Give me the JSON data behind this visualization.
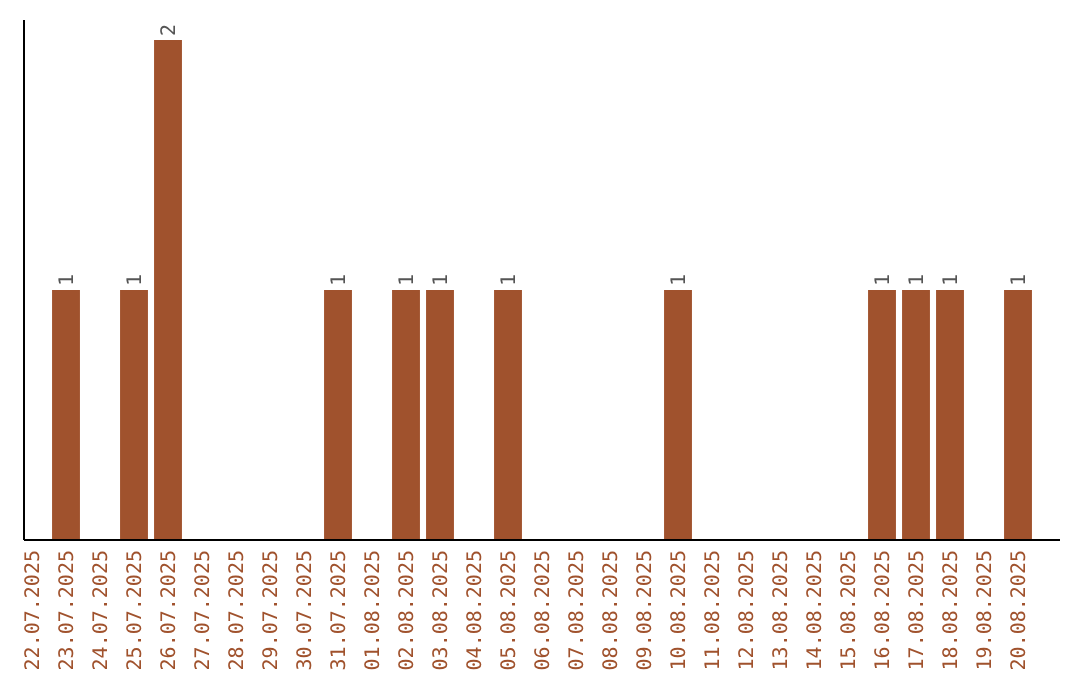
{
  "chart_data": {
    "type": "bar",
    "categories": [
      "22.07.2025",
      "23.07.2025",
      "24.07.2025",
      "25.07.2025",
      "26.07.2025",
      "27.07.2025",
      "28.07.2025",
      "29.07.2025",
      "30.07.2025",
      "31.07.2025",
      "01.08.2025",
      "02.08.2025",
      "03.08.2025",
      "04.08.2025",
      "05.08.2025",
      "06.08.2025",
      "07.08.2025",
      "08.08.2025",
      "09.08.2025",
      "10.08.2025",
      "11.08.2025",
      "12.08.2025",
      "13.08.2025",
      "14.08.2025",
      "15.08.2025",
      "16.08.2025",
      "17.08.2025",
      "18.08.2025",
      "19.08.2025",
      "20.08.2025"
    ],
    "values": [
      0,
      1,
      0,
      1,
      2,
      0,
      0,
      0,
      0,
      1,
      0,
      1,
      1,
      0,
      1,
      0,
      0,
      0,
      0,
      1,
      0,
      0,
      0,
      0,
      0,
      1,
      1,
      1,
      0,
      1
    ],
    "value_labels": [
      null,
      "1",
      null,
      "1",
      "2",
      null,
      null,
      null,
      null,
      "1",
      null,
      "1",
      "1",
      null,
      "1",
      null,
      null,
      null,
      null,
      "1",
      null,
      null,
      null,
      null,
      null,
      "1",
      "1",
      "1",
      null,
      "1"
    ],
    "color": "#a0522d",
    "tick_labels": "x"
  }
}
